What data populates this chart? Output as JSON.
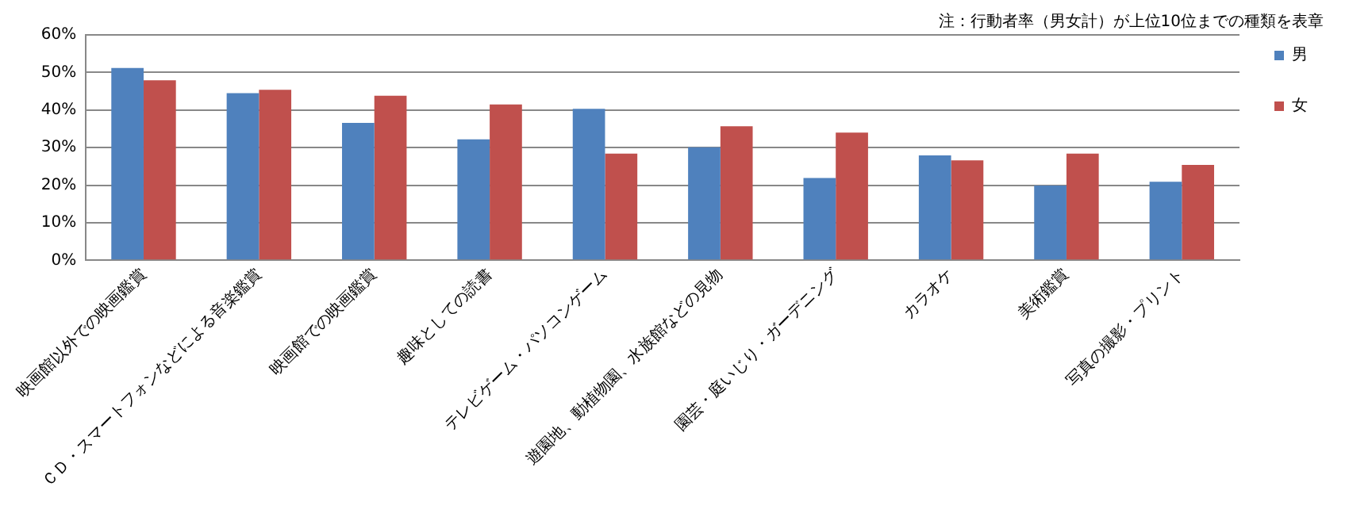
{
  "chart_data": {
    "type": "bar",
    "annotations": [
      "注：行動者率（男女計）が上位10位までの種類を表章"
    ],
    "categories": [
      "映画館以外での映画鑑賞",
      "ＣＤ・スマートフォンなどによる音楽鑑賞",
      "映画館での映画鑑賞",
      "趣味としての読書",
      "テレビゲーム・パソコンゲーム",
      "遊園地、動植物園、水族館などの見物",
      "園芸・庭いじり・ガーデニング",
      "カラオケ",
      "美術鑑賞",
      "写真の撮影・プリント"
    ],
    "series": [
      {
        "name": "男",
        "color": "#4f81bd",
        "values": [
          51.2,
          44.5,
          36.6,
          32.2,
          40.3,
          30.1,
          21.9,
          27.9,
          19.9,
          20.9
        ]
      },
      {
        "name": "女",
        "color": "#c0504d",
        "values": [
          47.9,
          45.4,
          43.8,
          41.5,
          28.4,
          35.7,
          34.0,
          26.6,
          28.4,
          25.4
        ]
      }
    ],
    "ylim": [
      0,
      60
    ],
    "yticks": [
      {
        "value": 0,
        "label": "0%"
      },
      {
        "value": 10,
        "label": "10%"
      },
      {
        "value": 20,
        "label": "20%"
      },
      {
        "value": 30,
        "label": "30%"
      },
      {
        "value": 40,
        "label": "40%"
      },
      {
        "value": 50,
        "label": "50%"
      },
      {
        "value": 60,
        "label": "60%"
      }
    ],
    "grid": "y",
    "legend": "top right"
  }
}
